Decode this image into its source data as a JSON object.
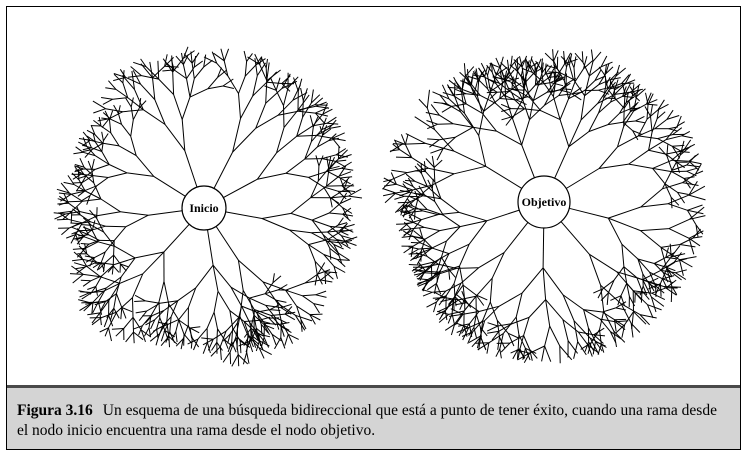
{
  "diagram": {
    "trees": [
      {
        "id": "start",
        "label": "Inicio",
        "seed": 7
      },
      {
        "id": "goal",
        "label": "Objetivo",
        "seed": 23
      }
    ],
    "colors": {
      "line": "#000000",
      "caption_bg": "#d4d4d4",
      "rule": "#4a4a4a"
    }
  },
  "caption": {
    "label": "Figura 3.16",
    "text": "Un esquema de una búsqueda bidireccional que está a punto de tener éxito, cuando una rama desde el nodo inicio encuentra una rama desde el nodo objetivo."
  }
}
